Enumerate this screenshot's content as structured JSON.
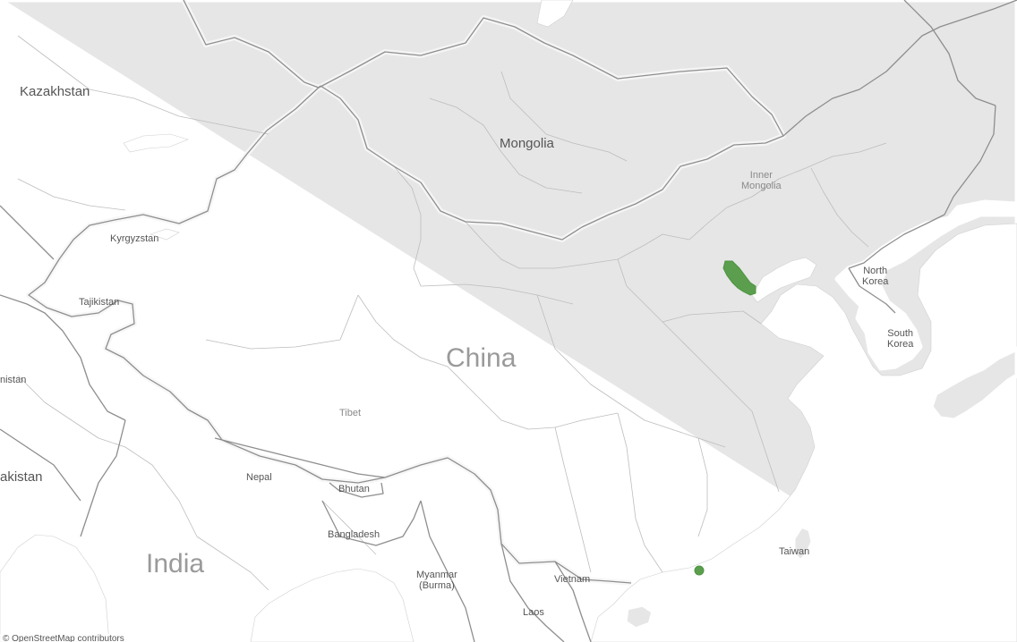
{
  "map": {
    "labels": {
      "kazakhstan": "Kazakhstan",
      "mongolia": "Mongolia",
      "inner_mongolia_line1": "Inner",
      "inner_mongolia_line2": "Mongolia",
      "kyrgyzstan": "Kyrgyzstan",
      "tajikistan": "Tajikistan",
      "afghanistan_partial": "nistan",
      "pakistan_partial": "akistan",
      "china": "China",
      "tibet": "Tibet",
      "nepal": "Nepal",
      "bhutan": "Bhutan",
      "bangladesh": "Bangladesh",
      "india": "India",
      "myanmar_line1": "Myanmar",
      "myanmar_line2": "(Burma)",
      "vietnam": "Vietnam",
      "laos": "Laos",
      "north_korea_line1": "North",
      "north_korea_line2": "Korea",
      "south_korea_line1": "South",
      "south_korea_line2": "Korea",
      "taiwan": "Taiwan"
    },
    "attribution": "© OpenStreetMap contributors",
    "colors": {
      "land": "#e6e6e6",
      "water": "#ffffff",
      "country_border": "#8e8e8e",
      "province_border": "#bdbdbd",
      "data_mark": "#5b9e4d"
    },
    "data_marks": [
      {
        "name": "Beijing–Tianjin area",
        "shape": "cluster"
      },
      {
        "name": "Hong Kong area",
        "shape": "point"
      }
    ]
  }
}
